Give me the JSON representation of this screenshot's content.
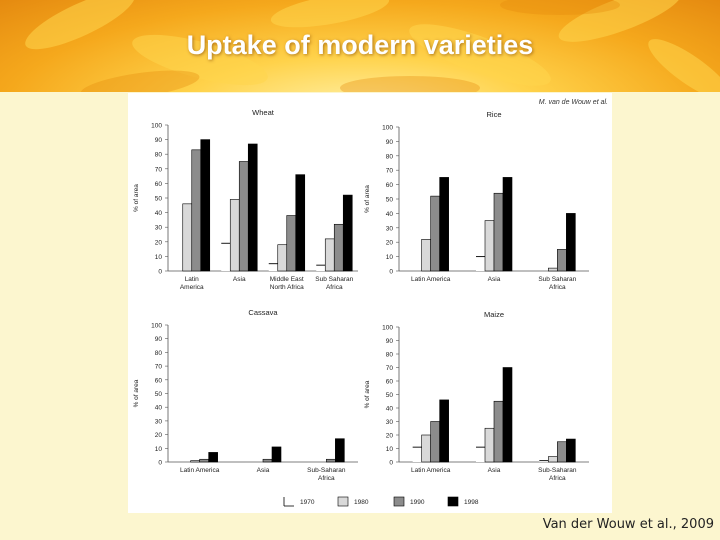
{
  "slide": {
    "title": "Uptake of modern varieties",
    "credit": "Van der Wouw et al., 2009",
    "figure_author": "M. van de Wouw et al."
  },
  "colors": {
    "banner": "#f5a81c",
    "bar_1970": "#ffffff",
    "bar_1980": "#d9d9d9",
    "bar_1990": "#8c8c8c",
    "bar_1998": "#000000"
  },
  "chart_data": [
    {
      "type": "bar",
      "title": "Wheat",
      "ylabel": "% of area",
      "ylim": [
        0,
        100
      ],
      "yticks": [
        "0",
        "10",
        "20",
        "30",
        "40",
        "50",
        "60",
        "70",
        "80",
        "90",
        "100"
      ],
      "categories": [
        "Latin America",
        "Asia",
        "Middle East North Africa",
        "Sub Saharan Africa"
      ],
      "category_labels": [
        [
          "Latin",
          "America"
        ],
        [
          "Asia"
        ],
        [
          "Middle East",
          "North Africa"
        ],
        [
          "Sub Saharan",
          "Africa"
        ]
      ],
      "series": [
        {
          "name": "1970",
          "values": [
            0,
            19,
            5,
            4
          ]
        },
        {
          "name": "1980",
          "values": [
            46,
            49,
            18,
            22
          ]
        },
        {
          "name": "1990",
          "values": [
            83,
            75,
            38,
            32
          ]
        },
        {
          "name": "1998",
          "values": [
            90,
            87,
            66,
            52
          ]
        }
      ]
    },
    {
      "type": "bar",
      "title": "Rice",
      "ylabel": "% of area",
      "ylim": [
        0,
        100
      ],
      "yticks": [
        "0",
        "10",
        "20",
        "30",
        "40",
        "50",
        "60",
        "70",
        "80",
        "90",
        "100"
      ],
      "categories": [
        "Latin America",
        "Asia",
        "Sub Saharan Africa"
      ],
      "category_labels": [
        [
          "Latin America"
        ],
        [
          "Asia"
        ],
        [
          "Sub Saharan",
          "Africa"
        ]
      ],
      "series": [
        {
          "name": "1970",
          "values": [
            0,
            10,
            0
          ]
        },
        {
          "name": "1980",
          "values": [
            22,
            35,
            2
          ]
        },
        {
          "name": "1990",
          "values": [
            52,
            54,
            15
          ]
        },
        {
          "name": "1998",
          "values": [
            65,
            65,
            40
          ]
        }
      ]
    },
    {
      "type": "bar",
      "title": "Cassava",
      "ylabel": "% of area",
      "ylim": [
        0,
        100
      ],
      "yticks": [
        "0",
        "10",
        "20",
        "30",
        "40",
        "50",
        "60",
        "70",
        "80",
        "90",
        "100"
      ],
      "categories": [
        "Latin America",
        "Asia",
        "Sub-Saharan Africa"
      ],
      "category_labels": [
        [
          "Latin America"
        ],
        [
          "Asia"
        ],
        [
          "Sub-Saharan",
          "Africa"
        ]
      ],
      "series": [
        {
          "name": "1970",
          "values": [
            0,
            0,
            0
          ]
        },
        {
          "name": "1980",
          "values": [
            1,
            0,
            0
          ]
        },
        {
          "name": "1990",
          "values": [
            2,
            2,
            2
          ]
        },
        {
          "name": "1998",
          "values": [
            7,
            11,
            17
          ]
        }
      ]
    },
    {
      "type": "bar",
      "title": "Maize",
      "ylabel": "% of area",
      "ylim": [
        0,
        100
      ],
      "yticks": [
        "0",
        "10",
        "20",
        "30",
        "40",
        "50",
        "60",
        "70",
        "80",
        "90",
        "100"
      ],
      "categories": [
        "Latin America",
        "Asia",
        "Sub-Saharan Africa"
      ],
      "category_labels": [
        [
          "Latin America"
        ],
        [
          "Asia"
        ],
        [
          "Sub-Saharan",
          "Africa"
        ]
      ],
      "series": [
        {
          "name": "1970",
          "values": [
            11,
            11,
            1
          ]
        },
        {
          "name": "1980",
          "values": [
            20,
            25,
            4
          ]
        },
        {
          "name": "1990",
          "values": [
            30,
            45,
            15
          ]
        },
        {
          "name": "1998",
          "values": [
            46,
            70,
            17
          ]
        }
      ]
    }
  ],
  "legend": {
    "placement": "bottom",
    "items": [
      {
        "label": "1970",
        "color": "#ffffff"
      },
      {
        "label": "1980",
        "color": "#d9d9d9"
      },
      {
        "label": "1990",
        "color": "#8c8c8c"
      },
      {
        "label": "1998",
        "color": "#000000"
      }
    ]
  }
}
